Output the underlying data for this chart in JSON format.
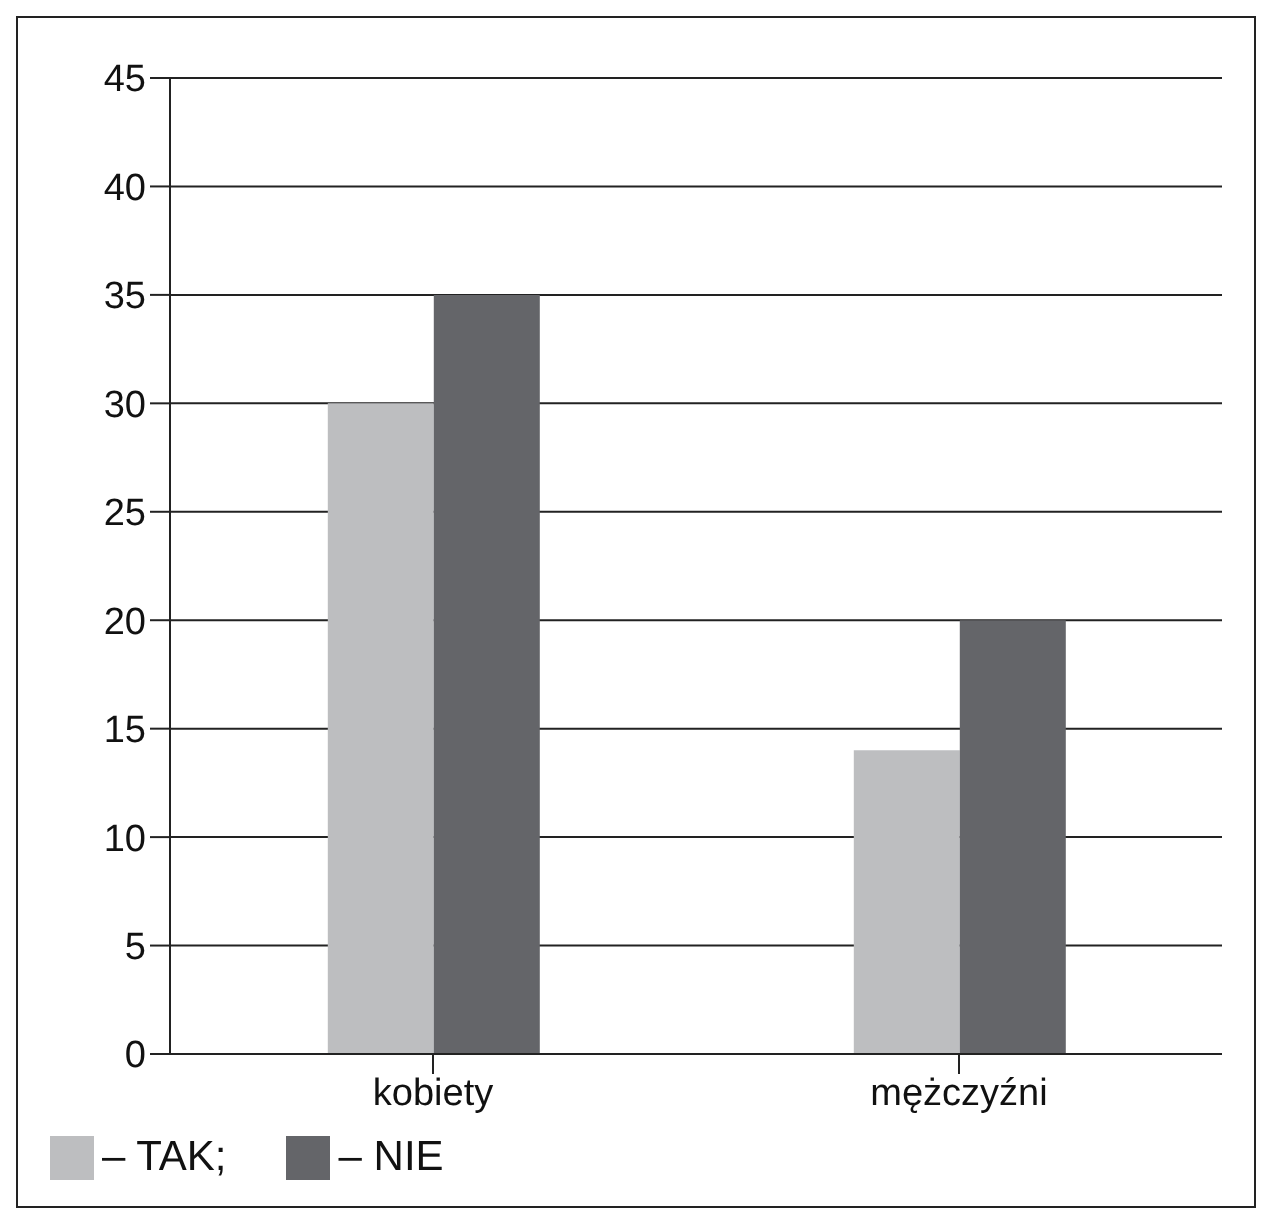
{
  "chart_data": {
    "type": "bar",
    "categories": [
      "kobiety",
      "mężczyźni"
    ],
    "series": [
      {
        "name": "– TAK;",
        "color": "#bdbec0",
        "values": [
          30,
          14
        ]
      },
      {
        "name": "– NIE",
        "color": "#646569",
        "values": [
          35,
          20
        ]
      }
    ],
    "ylim": [
      0,
      45
    ],
    "yticks": [
      0,
      5,
      10,
      15,
      20,
      25,
      30,
      35,
      40,
      45
    ],
    "grid": "y",
    "legend": "bottom left"
  }
}
